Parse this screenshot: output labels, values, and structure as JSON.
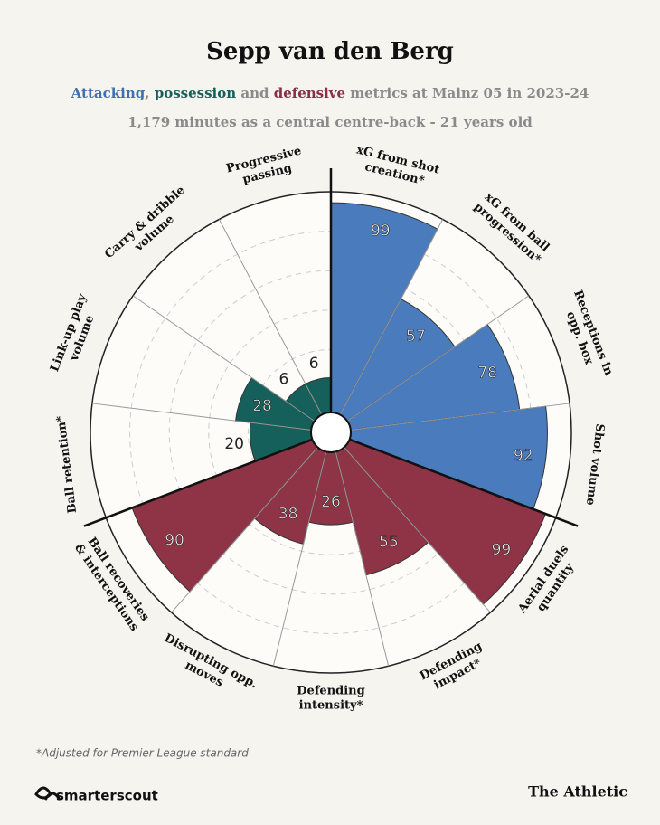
{
  "chart_data": {
    "type": "polar-bar",
    "title": "Sepp van den Berg",
    "subtitle_parts": [
      {
        "text": "Attacking",
        "color": "#3f70b2"
      },
      {
        "text": ", ",
        "color": "#8a8a8a"
      },
      {
        "text": "possession",
        "color": "#17605a"
      },
      {
        "text": " and ",
        "color": "#8a8a8a"
      },
      {
        "text": "defensive",
        "color": "#8b2f43"
      },
      {
        "text": " metrics at Mainz 05 in 2023-24",
        "color": "#8a8a8a"
      }
    ],
    "subtitle2": "1,179 minutes as a central centre-back - 21 years old",
    "categories": [
      [
        "xG from shot",
        "creation*"
      ],
      [
        "xG from ball",
        "progression*"
      ],
      [
        "Receptions in",
        "opp. box"
      ],
      [
        "Shot volume"
      ],
      [
        "Aerial duels",
        "quantity"
      ],
      [
        "Defending",
        "impact*"
      ],
      [
        "Defending",
        "intensity*"
      ],
      [
        "Disrupting opp.",
        "moves"
      ],
      [
        "Ball recoveries",
        "& interceptions"
      ],
      [
        "Ball retention*"
      ],
      [
        "Link-up play",
        "volume"
      ],
      [
        "Carry & dribble",
        "volume"
      ],
      [
        "Progressive",
        "passing"
      ]
    ],
    "values": [
      99,
      57,
      78,
      92,
      99,
      55,
      26,
      38,
      90,
      20,
      28,
      6,
      6
    ],
    "colors": [
      "#4a7bbd",
      "#4a7bbd",
      "#4a7bbd",
      "#4a7bbd",
      "#8e3446",
      "#8e3446",
      "#8e3446",
      "#8e3446",
      "#8e3446",
      "#15605a",
      "#15605a",
      "#15605a",
      "#15605a"
    ],
    "rlim": [
      0,
      100
    ],
    "footnote": "*Adjusted for Premier League standard",
    "source": "smarterscout",
    "publisher": "The Athletic"
  }
}
